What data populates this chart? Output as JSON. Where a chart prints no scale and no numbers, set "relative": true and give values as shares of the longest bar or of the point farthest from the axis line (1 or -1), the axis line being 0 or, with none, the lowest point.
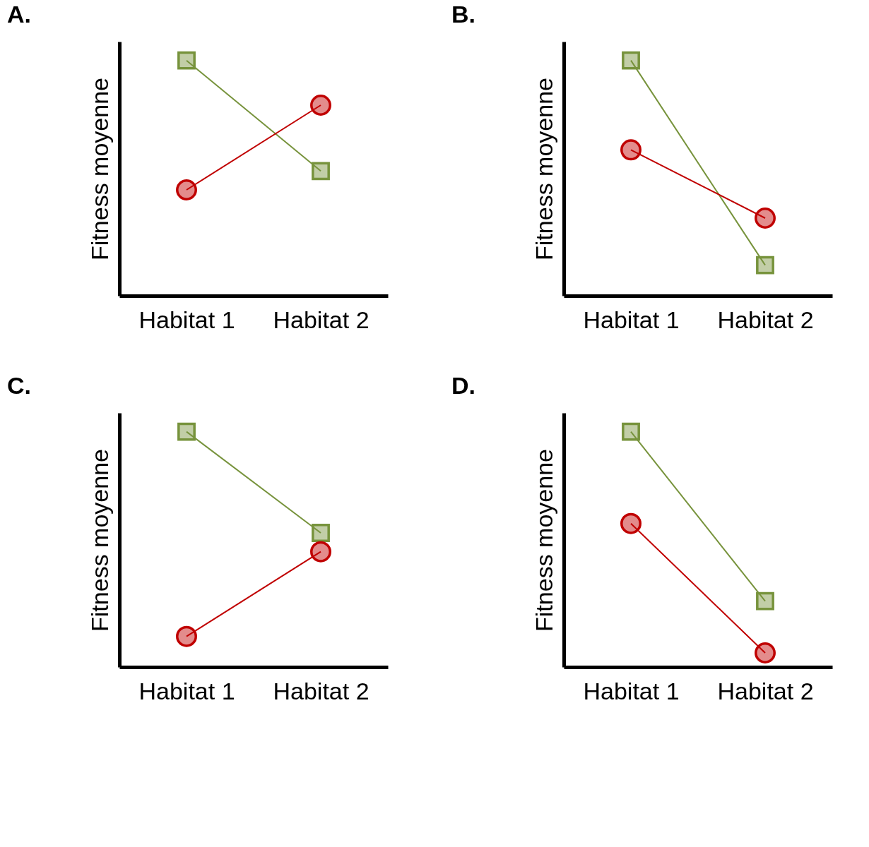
{
  "chart_data": [
    {
      "type": "line",
      "title": "A.",
      "ylabel": "Fitness moyenne",
      "categories": [
        "Habitat 1",
        "Habitat 2"
      ],
      "relative": true,
      "tick_labels": "x",
      "grid": false,
      "series": [
        {
          "color": "#77933c",
          "marker": "square",
          "values": [
            1,
            0.53
          ]
        },
        {
          "color": "#c00000",
          "marker": "circle",
          "values": [
            0.45,
            0.81
          ]
        }
      ]
    },
    {
      "type": "line",
      "title": "B.",
      "ylabel": "Fitness moyenne",
      "categories": [
        "Habitat 1",
        "Habitat 2"
      ],
      "relative": true,
      "tick_labels": "x",
      "grid": false,
      "series": [
        {
          "color": "#77933c",
          "marker": "square",
          "values": [
            1,
            0.13
          ]
        },
        {
          "color": "#c00000",
          "marker": "circle",
          "values": [
            0.62,
            0.33
          ]
        }
      ]
    },
    {
      "type": "line",
      "title": "C.",
      "ylabel": "Fitness moyenne",
      "categories": [
        "Habitat 1",
        "Habitat 2"
      ],
      "relative": true,
      "tick_labels": "x",
      "grid": false,
      "series": [
        {
          "color": "#77933c",
          "marker": "square",
          "values": [
            1,
            0.57
          ]
        },
        {
          "color": "#c00000",
          "marker": "circle",
          "values": [
            0.13,
            0.49
          ]
        }
      ]
    },
    {
      "type": "line",
      "title": "D.",
      "ylabel": "Fitness moyenne",
      "categories": [
        "Habitat 1",
        "Habitat 2"
      ],
      "relative": true,
      "tick_labels": "x",
      "grid": false,
      "series": [
        {
          "color": "#77933c",
          "marker": "square",
          "values": [
            1,
            0.28
          ]
        },
        {
          "color": "#c00000",
          "marker": "circle",
          "values": [
            0.61,
            0.06
          ]
        }
      ]
    }
  ]
}
